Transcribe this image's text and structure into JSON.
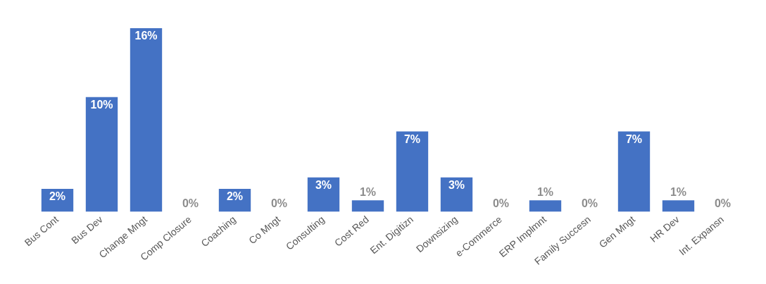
{
  "chart_data": {
    "type": "bar",
    "categories": [
      "Bus Cont",
      "Bus Dev",
      "Change Mngt",
      "Comp Closure",
      "Coaching",
      "Co Mngt",
      "Consulting",
      "Cost Red",
      "Ent. Digitizn",
      "Downsizing",
      "e-Commerce",
      "ERP Implmnt",
      "Family Succesn",
      "Gen Mngt",
      "HR Dev",
      "Int. Expansn"
    ],
    "values": [
      2,
      10,
      16,
      0,
      2,
      0,
      3,
      1,
      7,
      3,
      0,
      1,
      0,
      7,
      1,
      0
    ],
    "value_labels": [
      "2%",
      "10%",
      "16%",
      "0%",
      "2%",
      "0%",
      "3%",
      "1%",
      "7%",
      "3%",
      "0%",
      "1%",
      "0%",
      "7%",
      "1%",
      "0%"
    ],
    "color": "#4472c4",
    "grid": false,
    "legend": false
  }
}
